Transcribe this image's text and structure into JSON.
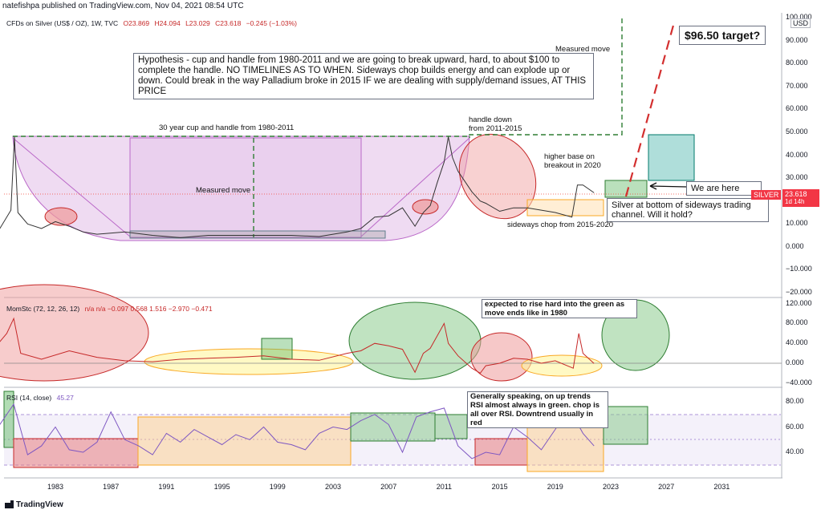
{
  "header": {
    "published": "natefishpa published on TradingView.com, Nov 04, 2021 08:54 UTC"
  },
  "footer": {
    "brand": "TradingView"
  },
  "chart_data": [
    {
      "type": "line",
      "symbol": "CFDs on Silver (US$ / OZ), 1W, TVC",
      "ohlc": {
        "o": "O23.869",
        "h": "H24.094",
        "l": "L23.029",
        "c": "C23.618",
        "chg": "−0.245 (−1.03%)"
      },
      "x_ticks": [
        "1983",
        "1987",
        "1991",
        "1995",
        "1999",
        "2003",
        "2007",
        "2011",
        "2015",
        "2019",
        "2023",
        "2027",
        "2031"
      ],
      "y_ticks": [
        "100.000",
        "90.000",
        "80.000",
        "70.000",
        "60.000",
        "50.000",
        "40.000",
        "30.000",
        "20.000",
        "10.000",
        "0.000",
        "−10.000",
        "−20.000"
      ],
      "ylim": [
        -20,
        100
      ],
      "currency": "USD",
      "price_tag": {
        "label": "SILVER",
        "value": "23.618",
        "sub": "1d 14h"
      },
      "annotations": {
        "hypothesis": "Hypothesis - cup and handle from 1980-2011 and we are going to break upward, hard, to about $100 to complete the handle.  NO TIMELINES AS TO WHEN.  Sideways chop builds energy and can explode up or down. Could break in the way Palladium broke in 2015 IF we are dealing with supply/demand issues, AT THIS PRICE",
        "target": "$96.50 target?",
        "measured_top": "Measured move",
        "cup_label": "30 year cup and handle from 1980-2011",
        "measured_mid": "Measured move",
        "handle_down_1": "handle down",
        "handle_down_2": "from 2011-2015",
        "higher_base_1": "higher base on",
        "higher_base_2": "breakout in 2020",
        "we_are_here": "We are here",
        "bottom_note": "Silver at bottom of sideways trading channel.  Will it hold?",
        "sideways": "sideways chop from 2015-2020"
      },
      "series": [
        {
          "name": "Silver",
          "color": "#2d2d2d",
          "x": [
            1978,
            1979,
            1979.8,
            1980.05,
            1980.3,
            1981,
            1982,
            1983,
            1984,
            1985,
            1986,
            1988,
            1990,
            1992,
            1994,
            1996,
            1998,
            2000,
            2002,
            2004,
            2005,
            2006,
            2007,
            2008,
            2008.9,
            2009.5,
            2010,
            2010.5,
            2011.0,
            2011.3,
            2011.6,
            2012,
            2013,
            2013.6,
            2014,
            2015,
            2016,
            2017,
            2018,
            2019,
            2020.2,
            2020.6,
            2021,
            2021.8
          ],
          "values": [
            5.5,
            8,
            16,
            48,
            15,
            10,
            8,
            11,
            9,
            6.5,
            5.5,
            6.5,
            5,
            4,
            5,
            5,
            5,
            5,
            4.5,
            6.5,
            8,
            13,
            13.5,
            17,
            9,
            15,
            18,
            28,
            37,
            48,
            39,
            33,
            24,
            20,
            19,
            15.5,
            17,
            17,
            16,
            15,
            13,
            27,
            27,
            23.6
          ]
        }
      ]
    },
    {
      "type": "line",
      "title": "MomStc (72, 12, 26, 12)",
      "values_text": "n/a  n/a  −0.097  0.568  1.516  −2.970  −0.471",
      "y_ticks": [
        "120.000",
        "80.000",
        "40.000",
        "0.000",
        "−40.000"
      ],
      "ylim": [
        -40,
        120
      ],
      "annotation": "expected to rise hard into the green as move ends like in 1980",
      "series": [
        {
          "name": "MomStc",
          "color": "#c62828",
          "x": [
            1978,
            1979.5,
            1980,
            1980.5,
            1982,
            1984,
            1986,
            1988,
            1990,
            1992,
            1994,
            1996,
            1998,
            2000,
            2002,
            2004,
            2005,
            2006,
            2007,
            2008,
            2008.9,
            2009.5,
            2010,
            2011,
            2011.3,
            2012,
            2013,
            2013.6,
            2014,
            2015,
            2016,
            2017,
            2018,
            2019,
            2020.3,
            2020.7,
            2021,
            2021.8
          ],
          "values": [
            10,
            60,
            90,
            20,
            8,
            25,
            12,
            5,
            3,
            8,
            10,
            12,
            15,
            8,
            6,
            20,
            25,
            40,
            35,
            28,
            -18,
            20,
            30,
            80,
            40,
            15,
            -10,
            -20,
            -5,
            0,
            10,
            8,
            0,
            5,
            -10,
            60,
            20,
            -0.5
          ]
        }
      ]
    },
    {
      "type": "line",
      "title": "RSI (14, close)",
      "value": "45.27",
      "y_ticks": [
        "80.00",
        "60.00",
        "40.00"
      ],
      "ylim": [
        20,
        90
      ],
      "annotation": "Generally speaking, on up trends RSI almost always in green.  chop is all over RSI. Downtrend usually in red",
      "series": [
        {
          "name": "RSI",
          "color": "#7e57c2",
          "x": [
            1978,
            1979,
            1980,
            1981,
            1982,
            1983,
            1984,
            1985,
            1986,
            1987,
            1988,
            1989,
            1990,
            1991,
            1992,
            1993,
            1994,
            1995,
            1996,
            1997,
            1998,
            1999,
            2000,
            2001,
            2002,
            2003,
            2004,
            2005,
            2006,
            2007,
            2008,
            2009,
            2010,
            2011,
            2012,
            2013,
            2014,
            2015,
            2016,
            2017,
            2018,
            2019,
            2020,
            2021,
            2021.8
          ],
          "values": [
            55,
            62,
            78,
            38,
            45,
            60,
            42,
            40,
            48,
            72,
            50,
            45,
            38,
            55,
            48,
            58,
            52,
            46,
            54,
            50,
            60,
            48,
            46,
            42,
            55,
            60,
            58,
            65,
            70,
            62,
            40,
            68,
            72,
            75,
            45,
            35,
            40,
            38,
            60,
            52,
            42,
            58,
            75,
            55,
            45
          ]
        }
      ]
    }
  ]
}
